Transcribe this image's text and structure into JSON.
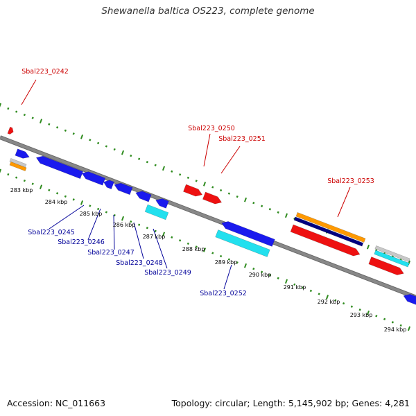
{
  "title": "Shewanella baltica OS223, complete genome",
  "footer": {
    "accession": "Accession: NC_011663",
    "stats": "Topology: circular; Length: 5,145,902 bp; Genes: 4,281"
  },
  "colors": {
    "backbone": "#888888",
    "backbone_edge": "#6a6a6a",
    "tick_green": "#2e8b1e",
    "forward_label": "#cc0000",
    "reverse_label": "#000099",
    "blue": "#1a1aee",
    "red": "#ee1111",
    "cyan": "#22e0ee",
    "orange": "#ff9900",
    "navy": "#000080",
    "gray": "#c8c8c8"
  },
  "kbp_labels": [
    "283 kbp",
    "284 kbp",
    "285 kbp",
    "286 kbp",
    "287 kbp",
    "288 kbp",
    "289 kbp",
    "290 kbp",
    "291 kbp",
    "292 kbp",
    "293 kbp",
    "294 kbp"
  ],
  "forward_labels": [
    "Sbal223_0242",
    "Sbal223_0250",
    "Sbal223_0251",
    "Sbal223_0253"
  ],
  "reverse_labels": [
    "Sbal223_0245",
    "Sbal223_0246",
    "Sbal223_0247",
    "Sbal223_0248",
    "Sbal223_0249",
    "Sbal223_0252"
  ]
}
